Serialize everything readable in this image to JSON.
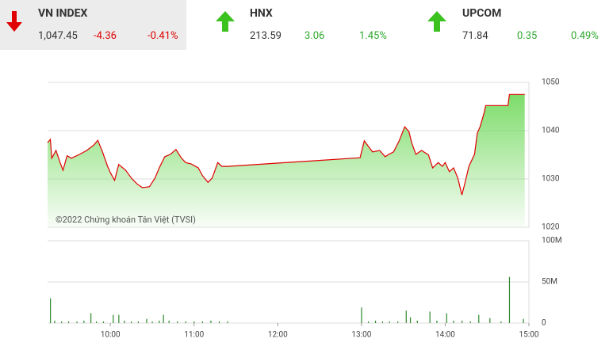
{
  "indices": [
    {
      "name": "VN INDEX",
      "value": "1,047.45",
      "change": "-4.36",
      "percent": "-0.41%"
    },
    {
      "name": "HNX",
      "value": "213.59",
      "change": "3.06",
      "percent": "1.45%"
    },
    {
      "name": "UPCOM",
      "value": "71.84",
      "change": "0.35",
      "percent": "0.49%"
    }
  ],
  "chart_data": [
    {
      "type": "area",
      "annotation": "©2022 Chứng khoán Tân Việt (TVSI)",
      "color": "#e00000",
      "fill": "#7ddc6a",
      "x": [
        555,
        557,
        558,
        561,
        564,
        566,
        569,
        572,
        578,
        583,
        588,
        591,
        594,
        598,
        600,
        603,
        606,
        611,
        615,
        619,
        623,
        628,
        632,
        635,
        639,
        643,
        647,
        651,
        654,
        658,
        663,
        666,
        670,
        673,
        677,
        680,
        684,
        779,
        782,
        785,
        788,
        793,
        797,
        799,
        803,
        807,
        811,
        814,
        816,
        819,
        823,
        828,
        831,
        835,
        838,
        840,
        843,
        846,
        849,
        852,
        854,
        857,
        861,
        863,
        865,
        868,
        869,
        885,
        886,
        897
      ],
      "values": [
        1037.5,
        1038.2,
        1034.3,
        1035.9,
        1033.4,
        1031.8,
        1034.8,
        1034.3,
        1035.1,
        1035.9,
        1037.0,
        1038.0,
        1035.9,
        1032.6,
        1031.3,
        1029.7,
        1033.0,
        1031.8,
        1030.2,
        1029.0,
        1028.2,
        1028.4,
        1030.2,
        1032.3,
        1034.6,
        1035.1,
        1036.1,
        1034.3,
        1033.4,
        1033.1,
        1032.3,
        1030.7,
        1029.3,
        1030.2,
        1033.4,
        1032.6,
        1032.6,
        1034.4,
        1037.9,
        1036.7,
        1035.6,
        1035.9,
        1034.6,
        1035.0,
        1035.6,
        1037.9,
        1040.8,
        1039.8,
        1037.5,
        1035.1,
        1035.9,
        1035.0,
        1032.3,
        1033.4,
        1032.6,
        1033.4,
        1031.5,
        1032.3,
        1030.2,
        1026.7,
        1029.0,
        1032.6,
        1035.1,
        1039.5,
        1040.8,
        1043.8,
        1045.2,
        1045.2,
        1047.5,
        1047.5
      ],
      "xlim": [
        555,
        900
      ],
      "ylim": [
        1020,
        1050
      ],
      "yticks": [
        1020,
        1030,
        1040,
        1050
      ],
      "grid": true
    },
    {
      "type": "bar",
      "color": "#2e8b2e",
      "x": [
        557,
        560,
        565,
        570,
        576,
        581,
        586,
        590,
        595,
        602,
        606,
        610,
        615,
        620,
        626,
        630,
        635,
        638,
        642,
        648,
        654,
        660,
        666,
        672,
        678,
        684,
        780,
        785,
        790,
        795,
        800,
        806,
        812,
        815,
        820,
        829,
        834,
        841,
        846,
        852,
        858,
        864,
        872,
        880,
        886,
        896
      ],
      "values": [
        30,
        3,
        2,
        2,
        2,
        3,
        12,
        2,
        2,
        10,
        10,
        3,
        2,
        2,
        5,
        2,
        3,
        10,
        3,
        2,
        2,
        2,
        2,
        3,
        2,
        2,
        19,
        2,
        3,
        2,
        2,
        2,
        15,
        7,
        3,
        14,
        3,
        12,
        3,
        3,
        2,
        10,
        6,
        2,
        56,
        5
      ],
      "xlim": [
        555,
        900
      ],
      "ylim": [
        0,
        100
      ],
      "yticks": [
        0,
        {
          "value": 50,
          "label": "50M"
        },
        {
          "value": 100,
          "label": "100M"
        }
      ],
      "xticks": [
        {
          "value": 600,
          "label": "10:00"
        },
        {
          "value": 660,
          "label": "11:00"
        },
        {
          "value": 720,
          "label": "12:00"
        },
        {
          "value": 780,
          "label": "13:00"
        },
        {
          "value": 840,
          "label": "14:00"
        },
        {
          "value": 900,
          "label": "15:00"
        }
      ],
      "grid": true
    }
  ]
}
